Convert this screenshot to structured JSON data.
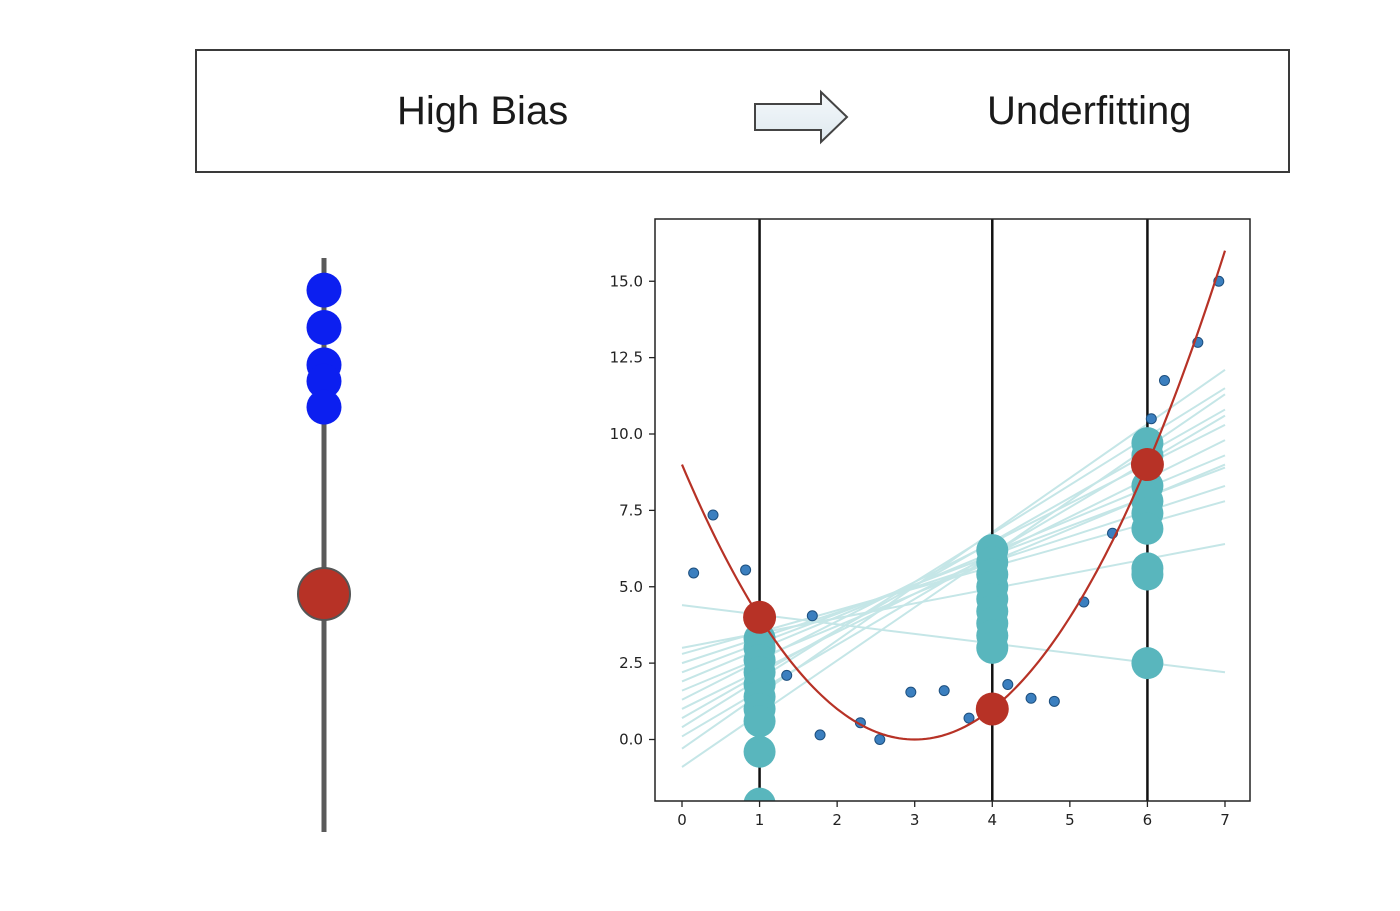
{
  "banner": {
    "left_text": "High Bias",
    "right_text": "Underfitting"
  },
  "colors": {
    "blue_dot": "#0c1ff0",
    "red_dot": "#b73226",
    "teal": "#59b6bd",
    "light_teal": "#c5e6e7",
    "curve": "#b73226",
    "small_dot": "#3b7fbf",
    "axis_line": "#5a5a5a"
  },
  "chart_data": [
    {
      "type": "scatter",
      "panel": "left",
      "description_values": {
        "blue_points_y": [
          9.35,
          8.2,
          7.05,
          6.55,
          5.75
        ],
        "red_point_y": 0.0
      },
      "title": "",
      "xlabel": "",
      "ylabel": ""
    },
    {
      "type": "scatter",
      "panel": "right",
      "title": "",
      "xlabel": "",
      "ylabel": "",
      "xlim": [
        -0.35,
        7.35
      ],
      "ylim": [
        -2.0,
        17.0
      ],
      "x_ticks": [
        0,
        1,
        2,
        3,
        4,
        5,
        6,
        7
      ],
      "x_tick_labels": [
        "0",
        "1",
        "2",
        "3",
        "4",
        "5",
        "6",
        "7"
      ],
      "y_ticks": [
        0.0,
        2.5,
        5.0,
        7.5,
        10.0,
        12.5,
        15.0
      ],
      "y_tick_labels": [
        "0.0",
        "2.5",
        "5.0",
        "7.5",
        "10.0",
        "12.5",
        "15.0"
      ],
      "vertical_lines_x": [
        1,
        4,
        6
      ],
      "true_function": {
        "formula": "(x-3)^2",
        "x_range": [
          0,
          7
        ]
      },
      "true_values": [
        {
          "x": 1,
          "y": 4.0
        },
        {
          "x": 4,
          "y": 1.0
        },
        {
          "x": 6,
          "y": 9.0
        }
      ],
      "data_points": [
        {
          "x": 0.15,
          "y": 5.45
        },
        {
          "x": 0.4,
          "y": 7.35
        },
        {
          "x": 0.82,
          "y": 5.55
        },
        {
          "x": 1.35,
          "y": 2.1
        },
        {
          "x": 1.68,
          "y": 4.05
        },
        {
          "x": 1.78,
          "y": 0.15
        },
        {
          "x": 2.3,
          "y": 0.55
        },
        {
          "x": 2.55,
          "y": 0.0
        },
        {
          "x": 2.95,
          "y": 1.55
        },
        {
          "x": 3.38,
          "y": 1.6
        },
        {
          "x": 3.7,
          "y": 0.7
        },
        {
          "x": 4.2,
          "y": 1.8
        },
        {
          "x": 4.5,
          "y": 1.35
        },
        {
          "x": 4.8,
          "y": 1.25
        },
        {
          "x": 5.18,
          "y": 4.5
        },
        {
          "x": 5.55,
          "y": 6.75
        },
        {
          "x": 6.05,
          "y": 10.5
        },
        {
          "x": 6.22,
          "y": 11.75
        },
        {
          "x": 6.65,
          "y": 13.0
        },
        {
          "x": 6.92,
          "y": 15.0
        }
      ],
      "predictions": [
        {
          "x": 1,
          "values": [
            3.3,
            3.0,
            2.6,
            2.2,
            1.8,
            1.4,
            1.0,
            0.6,
            -0.4,
            -2.1
          ]
        },
        {
          "x": 4,
          "values": [
            6.2,
            5.8,
            5.4,
            5.0,
            4.6,
            4.2,
            3.8,
            3.4,
            3.0
          ]
        },
        {
          "x": 6,
          "values": [
            9.7,
            9.3,
            8.3,
            7.8,
            7.4,
            6.9,
            5.6,
            5.4,
            2.5
          ]
        }
      ],
      "fitted_lines": [
        {
          "y0": 4.4,
          "y7": 2.2
        },
        {
          "y0": 3.0,
          "y7": 6.4
        },
        {
          "y0": 2.8,
          "y7": 7.8
        },
        {
          "y0": 2.5,
          "y7": 8.3
        },
        {
          "y0": 2.2,
          "y7": 8.9
        },
        {
          "y0": 1.9,
          "y7": 9.3
        },
        {
          "y0": 1.6,
          "y7": 9.0
        },
        {
          "y0": 1.3,
          "y7": 10.3
        },
        {
          "y0": 1.0,
          "y7": 9.8
        },
        {
          "y0": 0.7,
          "y7": 10.8
        },
        {
          "y0": 0.4,
          "y7": 11.5
        },
        {
          "y0": 0.1,
          "y7": 10.6
        },
        {
          "y0": -0.3,
          "y7": 12.1
        },
        {
          "y0": -0.9,
          "y7": 11.3
        }
      ]
    }
  ]
}
